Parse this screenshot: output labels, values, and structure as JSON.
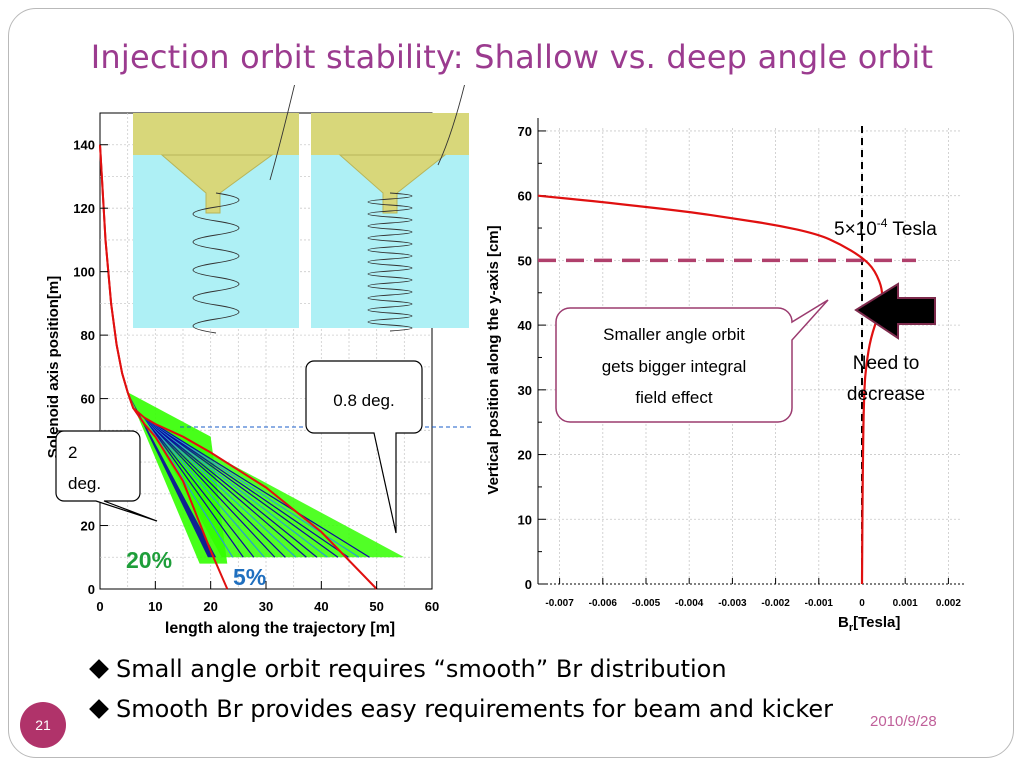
{
  "slide": {
    "title": "Injection orbit stability: Shallow vs. deep angle orbit",
    "bullets": [
      "Small angle orbit requires “smooth” Br distribution",
      "Smooth Br  provides easy requirements for beam and kicker"
    ],
    "page_number": "21",
    "date": "2010/9/28"
  },
  "left_chart": {
    "ylabel": "Solenoid axis position[m]",
    "xlabel": "length along the trajectory [m]",
    "x_ticks": [
      "0",
      "10",
      "20",
      "30",
      "40",
      "50",
      "60"
    ],
    "y_ticks": [
      "0",
      "20",
      "40",
      "60",
      "80",
      "100",
      "120",
      "140"
    ],
    "callout_2deg": [
      "2",
      "deg."
    ],
    "callout_08deg": "0.8 deg.",
    "label_20pct": "20%",
    "label_5pct": "5%",
    "colors": {
      "pct20": "#1e9e3a",
      "pct5": "#1f6fbf",
      "red": "#e01010",
      "green_band": "#33ff00",
      "blue_band": "#0a0aa0"
    }
  },
  "chart_data": [
    {
      "type": "line",
      "title": "",
      "xlabel": "length along the trajectory [m]",
      "ylabel": "Solenoid axis position[m]",
      "xlim": [
        0,
        60
      ],
      "ylim": [
        0,
        150
      ],
      "grid": true,
      "series": [
        {
          "x": [
            0,
            1,
            2,
            3,
            4,
            5,
            6,
            8,
            10,
            15,
            20,
            23
          ],
          "y": [
            140,
            110,
            90,
            77,
            68,
            62,
            57,
            52,
            48,
            34,
            12,
            0
          ]
        },
        {
          "x": [
            0,
            1,
            2,
            3,
            4,
            5,
            6,
            8,
            10,
            15,
            20,
            30,
            40,
            50
          ],
          "y": [
            140,
            110,
            90,
            77,
            68,
            62,
            57,
            54,
            52,
            48,
            43,
            32,
            18,
            0
          ]
        }
      ]
    },
    {
      "type": "line",
      "title": "",
      "xlabel": "Br[Tesla]",
      "ylabel": "Vertical position along the y-axis [cm]",
      "xlim": [
        -0.0075,
        0.0025
      ],
      "ylim": [
        0,
        72
      ],
      "x_ticks": [
        "-0.007",
        "-0.006",
        "-0.005",
        "-0.004",
        "-0.003",
        "-0.002",
        "-0.001",
        "0",
        "0.001",
        "0.002"
      ],
      "y_ticks": [
        "0",
        "10",
        "20",
        "30",
        "40",
        "50",
        "60",
        "70"
      ],
      "grid": true,
      "series": [
        {
          "x": [
            -0.0075,
            -0.006,
            -0.004,
            -0.003,
            -0.002,
            -0.001,
            -0.0005,
            0,
            0.0003,
            0.0005,
            0.0004,
            0.0002,
            0.0001,
            5e-05,
            2e-05,
            0
          ],
          "y": [
            60,
            59,
            57.5,
            56.5,
            55.5,
            54,
            52.5,
            50.5,
            48.5,
            45,
            42,
            38,
            34,
            30,
            20,
            0
          ]
        }
      ],
      "annotations": {
        "tesla_value": "5×10",
        "tesla_exp": "-4",
        "tesla_unit": " Tesla",
        "callout": [
          "Smaller angle orbit",
          "gets bigger integral",
          "field effect"
        ],
        "need": [
          "Need  to",
          "decrease"
        ]
      }
    }
  ]
}
